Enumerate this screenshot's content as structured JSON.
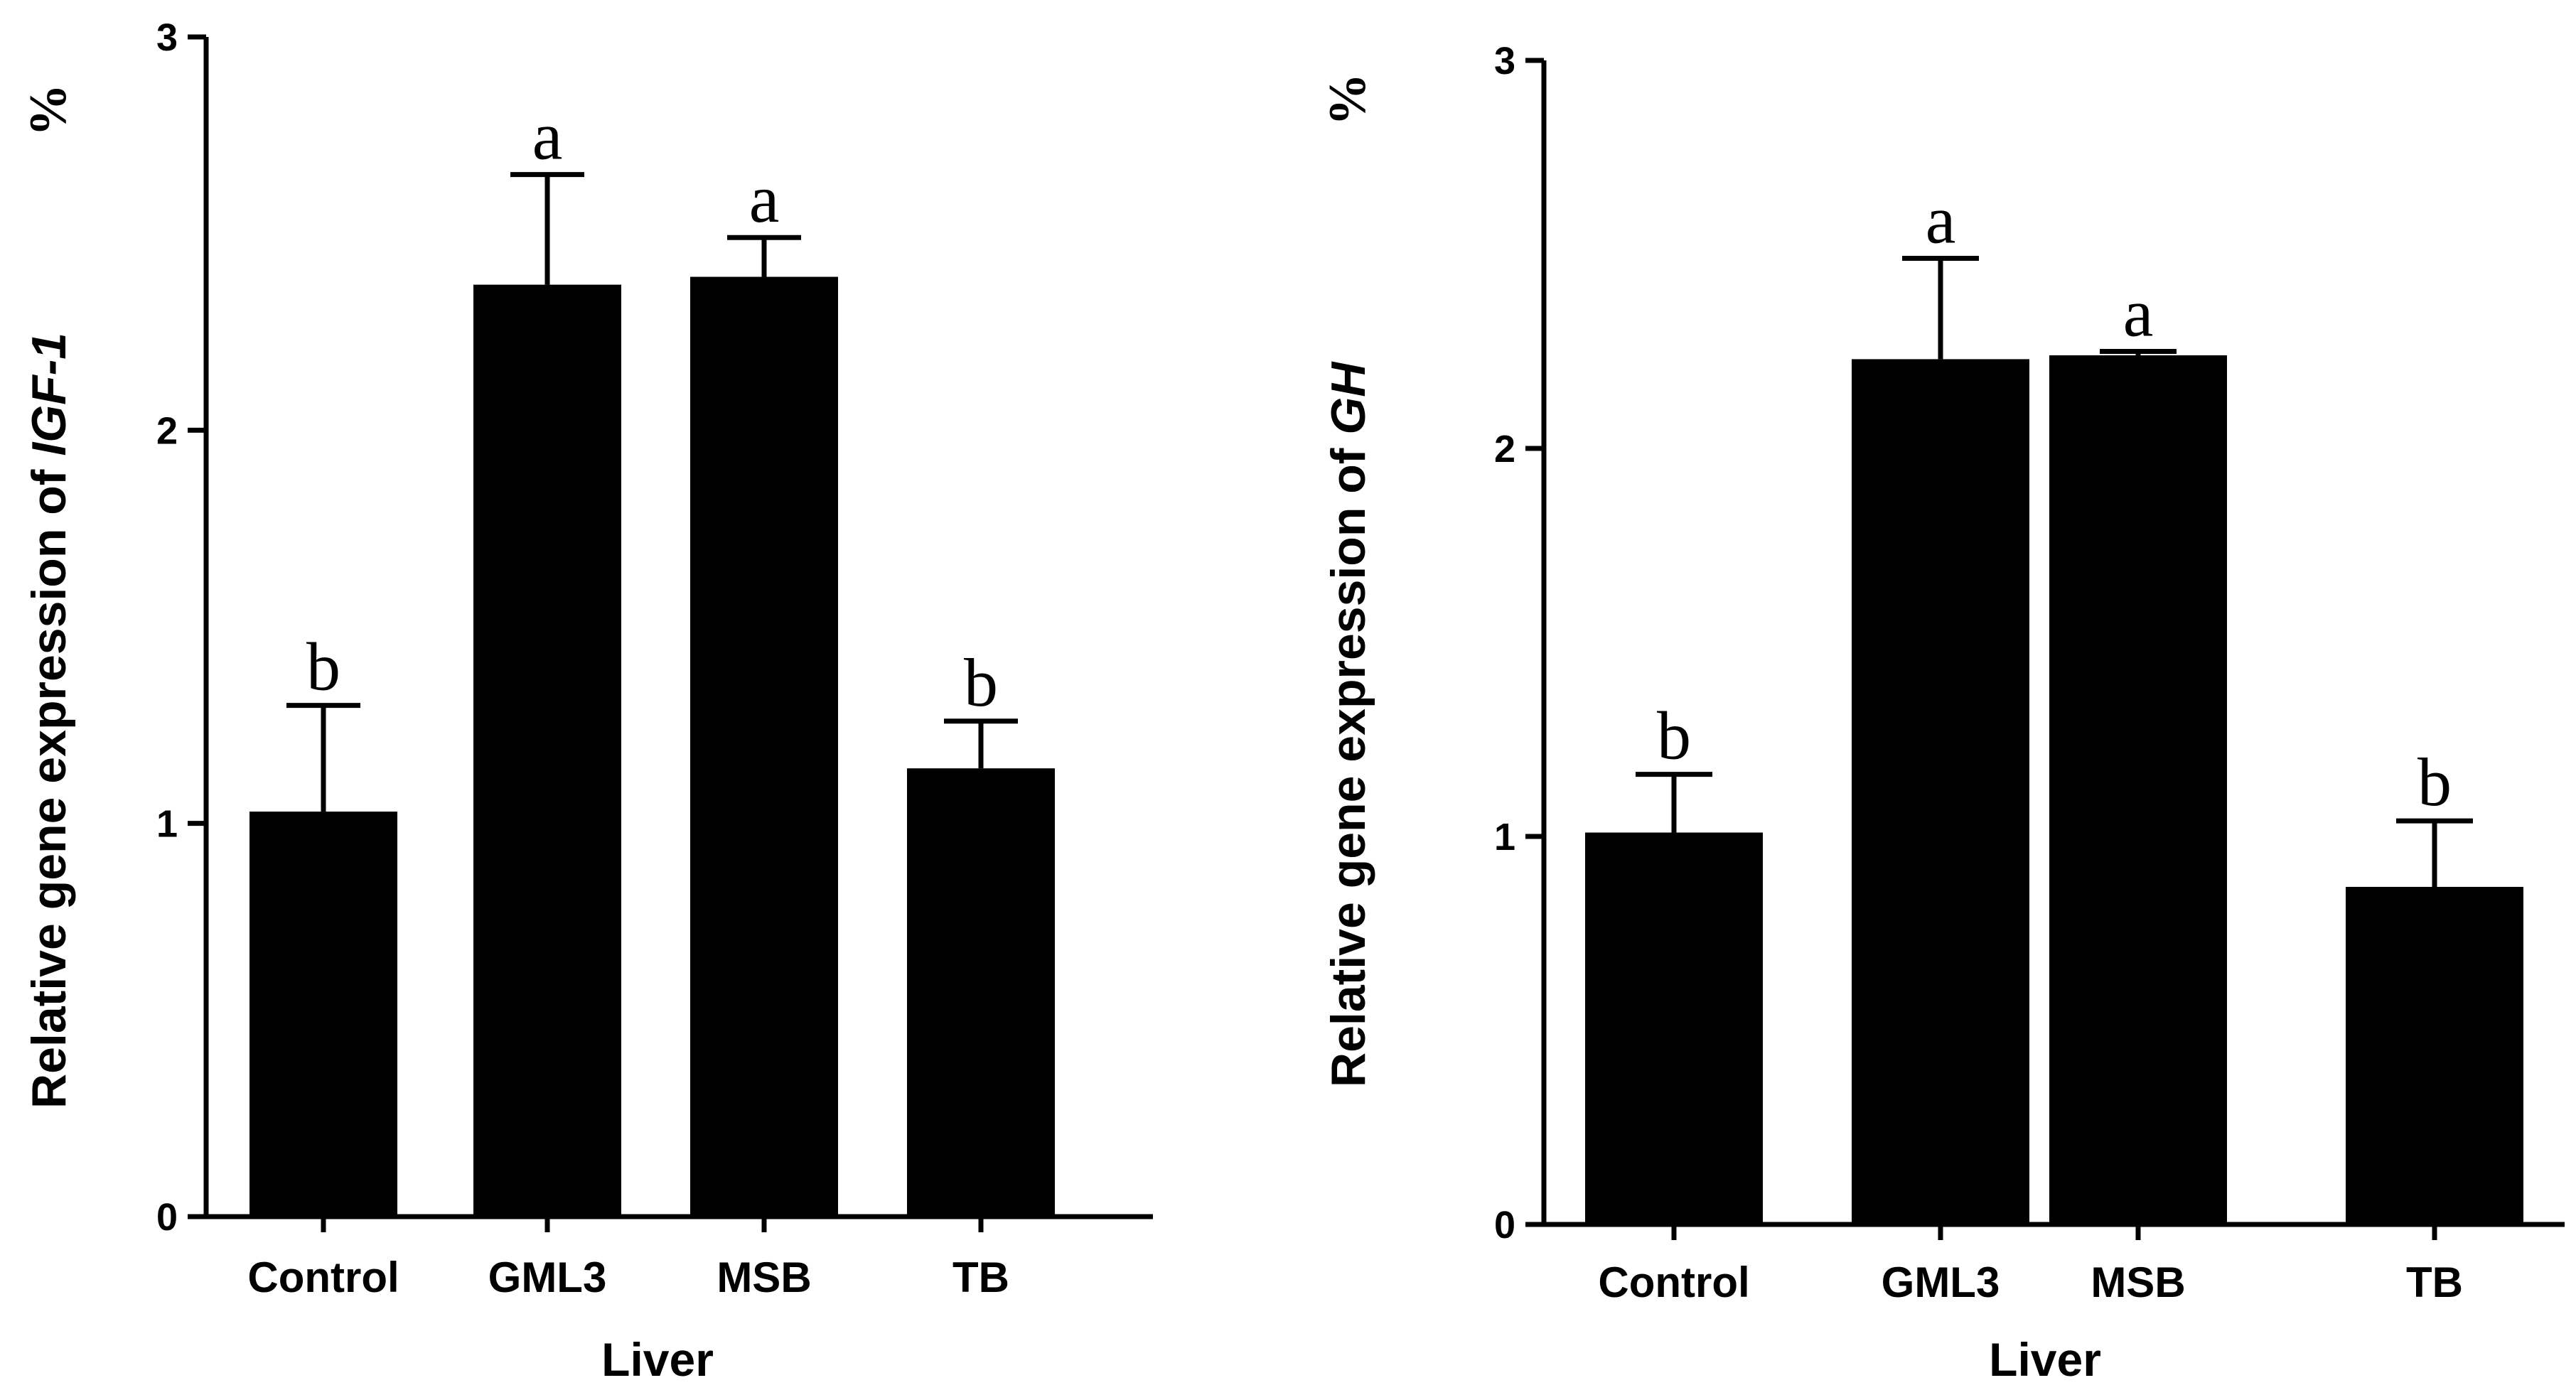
{
  "chart_data": [
    {
      "type": "bar",
      "categories": [
        "Control",
        "GML3",
        "MSB",
        "TB"
      ],
      "values": [
        1.03,
        2.37,
        2.39,
        1.14
      ],
      "errors": [
        0.27,
        0.28,
        0.1,
        0.12
      ],
      "significance": [
        "b",
        "a",
        "a",
        "b"
      ],
      "xlabel": "Liver",
      "ylabel_prefix": "Relative gene expression of ",
      "ylabel_gene": "IGF-1",
      "unit": "%",
      "ylim": [
        0,
        3
      ],
      "yticks": [
        "0",
        "1",
        "2",
        "3"
      ]
    },
    {
      "type": "bar",
      "categories": [
        "Control",
        "GML3",
        "MSB",
        "TB"
      ],
      "values": [
        1.01,
        2.23,
        2.24,
        0.87
      ],
      "errors": [
        0.15,
        0.26,
        0.01,
        0.17
      ],
      "significance": [
        "b",
        "a",
        "a",
        "b"
      ],
      "xlabel": "Liver",
      "ylabel_prefix": "Relative gene expression of ",
      "ylabel_gene": "GH",
      "unit": "%",
      "ylim": [
        0,
        3
      ],
      "yticks": [
        "0",
        "1",
        "2",
        "3"
      ]
    }
  ]
}
